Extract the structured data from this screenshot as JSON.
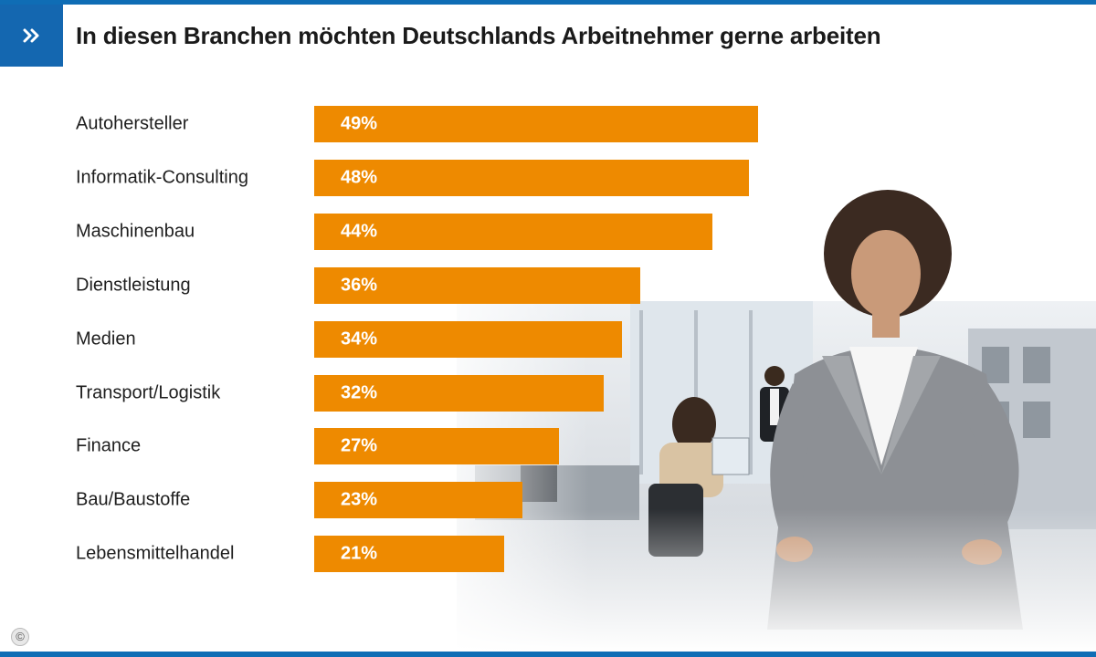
{
  "header": {
    "icon": "double-chevron-right-icon",
    "title": "In diesen Branchen möchten Deutschlands Arbeitnehmer gerne arbeiten"
  },
  "copyright_symbol": "©",
  "colors": {
    "accent_blue": "#1467b0",
    "bar_orange": "#ee8a00"
  },
  "chart_data": {
    "type": "bar",
    "orientation": "horizontal",
    "title": "In diesen Branchen möchten Deutschlands Arbeitnehmer gerne arbeiten",
    "categories": [
      "Autohersteller",
      "Informatik-Consulting",
      "Maschinenbau",
      "Dienstleistung",
      "Medien",
      "Transport/Logistik",
      "Finance",
      "Bau/Baustoffe",
      "Lebensmittelhandel"
    ],
    "values": [
      49,
      48,
      44,
      36,
      34,
      32,
      27,
      23,
      21
    ],
    "value_labels": [
      "49%",
      "48%",
      "44%",
      "36%",
      "34%",
      "32%",
      "27%",
      "23%",
      "21%"
    ],
    "unit": "%",
    "xlim": [
      0,
      100
    ]
  }
}
